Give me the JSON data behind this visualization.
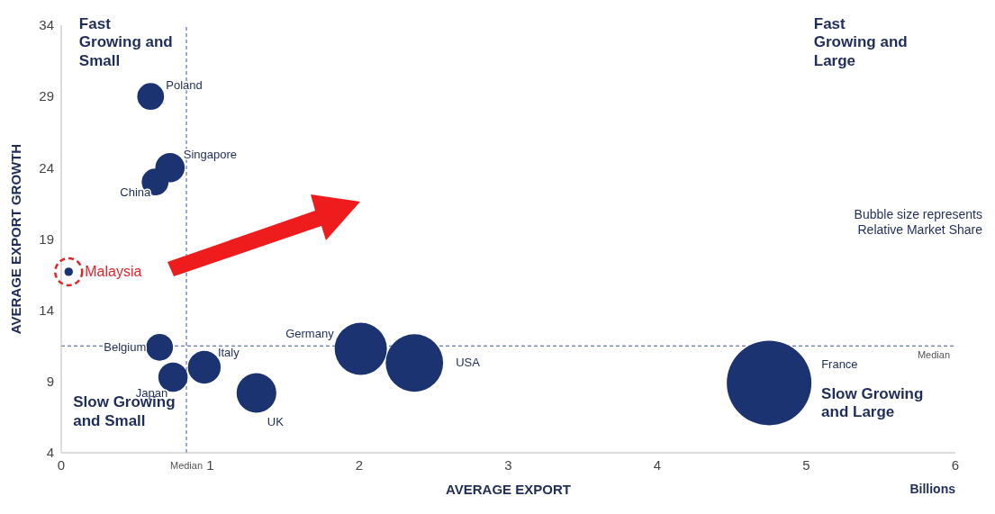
{
  "chart_data": {
    "type": "bubble",
    "xlabel": "AVERAGE EXPORT",
    "ylabel": "AVERAGE EXPORT GROWTH",
    "xlim": [
      0,
      6
    ],
    "xticks": [
      0,
      1,
      2,
      3,
      4,
      5,
      6
    ],
    "ylim": [
      4,
      34
    ],
    "yticks": [
      4,
      9,
      14,
      19,
      24,
      29,
      34
    ],
    "grid": false,
    "legend": false,
    "series": [
      {
        "name": "Poland",
        "color": "#1b3370",
        "x": [
          0.6
        ],
        "values": [
          29.0
        ],
        "sizes": [
          0.1
        ]
      },
      {
        "name": "Singapore",
        "color": "#1b3370",
        "x": [
          0.73
        ],
        "values": [
          24.0
        ],
        "sizes": [
          0.12
        ]
      },
      {
        "name": "China",
        "color": "#1b3370",
        "x": [
          0.63
        ],
        "values": [
          23.0
        ],
        "sizes": [
          0.1
        ]
      },
      {
        "name": "Malaysia",
        "color": "#1b3370",
        "x": [
          0.05
        ],
        "values": [
          16.7
        ],
        "sizes": [
          0.01
        ]
      },
      {
        "name": "Belgium",
        "color": "#1b3370",
        "x": [
          0.66
        ],
        "values": [
          11.4
        ],
        "sizes": [
          0.1
        ]
      },
      {
        "name": "Japan",
        "color": "#1b3370",
        "x": [
          0.75
        ],
        "values": [
          9.3
        ],
        "sizes": [
          0.12
        ]
      },
      {
        "name": "Italy",
        "color": "#1b3370",
        "x": [
          0.96
        ],
        "values": [
          10.0
        ],
        "sizes": [
          0.15
        ]
      },
      {
        "name": "UK",
        "color": "#1b3370",
        "x": [
          1.31
        ],
        "values": [
          8.2
        ],
        "sizes": [
          0.22
        ]
      },
      {
        "name": "Germany",
        "color": "#1b3370",
        "x": [
          2.01
        ],
        "values": [
          11.3
        ],
        "sizes": [
          0.38
        ]
      },
      {
        "name": "USA",
        "color": "#1b3370",
        "x": [
          2.37
        ],
        "values": [
          10.3
        ],
        "sizes": [
          0.46
        ]
      },
      {
        "name": "France",
        "color": "#1b3370",
        "x": [
          4.75
        ],
        "values": [
          8.9
        ],
        "sizes": [
          1
        ]
      }
    ],
    "ref_lines": [
      {
        "axis": "x",
        "value": 0.84,
        "label": "Median",
        "line_style": "dashed",
        "color": "#3a5a9a"
      },
      {
        "axis": "y",
        "value": 11.5,
        "label": "Median",
        "line_style": "dashed",
        "color": "#3a5a9a"
      }
    ],
    "annotations": [
      "Fast\nGrowing and\nSmall",
      "Fast\nGrowing and\nLarge",
      "Slow Growing\nand Small",
      "Slow Growing\nand Large",
      "Bubble size represents\nRelative Market Share",
      "Billions"
    ]
  }
}
